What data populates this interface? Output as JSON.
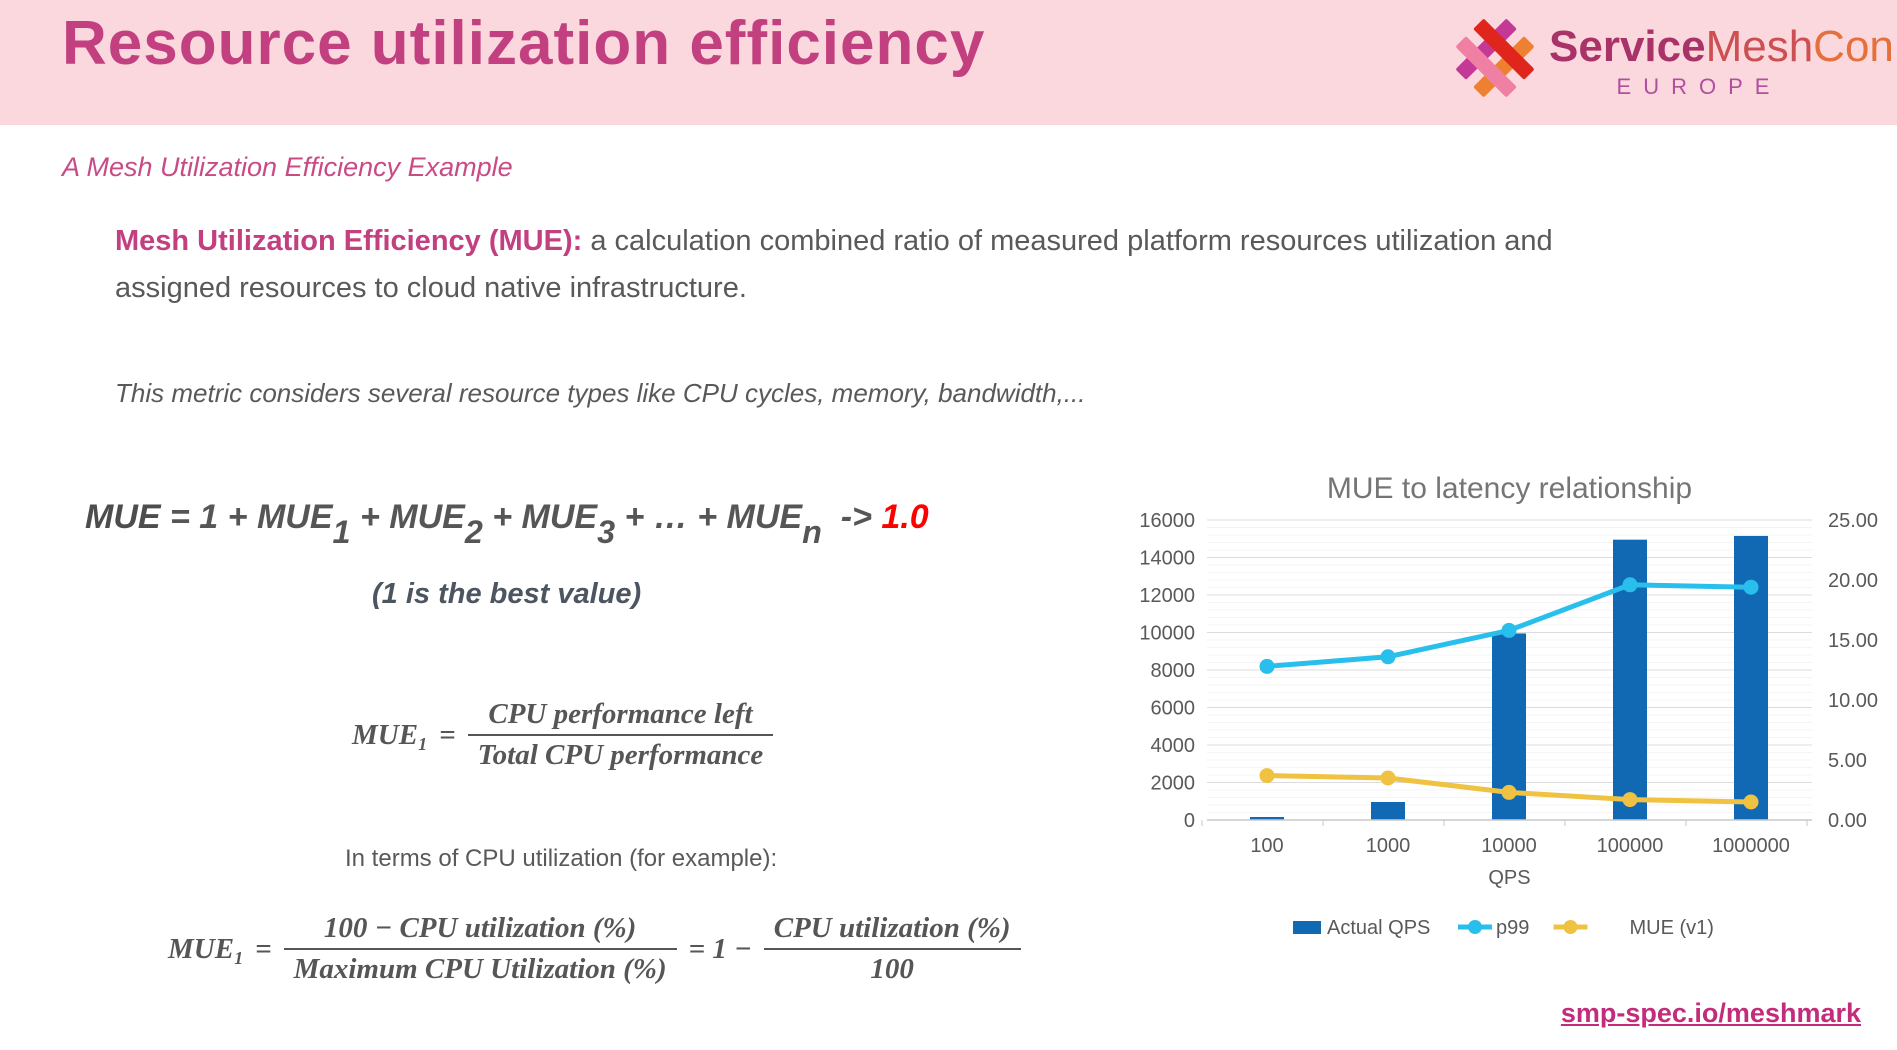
{
  "header": {
    "title": "Resource utilization efficiency",
    "logo": {
      "word_service": "Service",
      "word_mesh": "Mesh",
      "word_con": "Con",
      "region": "EUROPE"
    }
  },
  "subtitle": "A Mesh Utilization Efficiency Example",
  "definition": {
    "lead": "Mesh Utilization Efficiency (MUE):",
    "rest": " a calculation combined ratio of measured platform resources utilization and assigned resources to cloud native infrastructure."
  },
  "note": "This metric considers several resource types like CPU cycles, memory, bandwidth,...",
  "formulas": {
    "sum": {
      "parts": [
        {
          "text": "MUE",
          "cls": "f-bold"
        },
        {
          "text": " = 1 + MUE",
          "cls": ""
        },
        {
          "text": "1",
          "cls": "f-sub"
        },
        {
          "text": " + MUE",
          "cls": ""
        },
        {
          "text": "2",
          "cls": "f-sub"
        },
        {
          "text": " + MUE",
          "cls": ""
        },
        {
          "text": "3",
          "cls": "f-sub"
        },
        {
          "text": " + … + MUE",
          "cls": ""
        },
        {
          "text": "n",
          "cls": "f-sub"
        },
        {
          "text": "  -> ",
          "cls": "f-arrow"
        },
        {
          "text": "1.0",
          "cls": "f-red"
        }
      ],
      "caption": "(1 is the best value)"
    },
    "mue1": {
      "lhs": "MUE",
      "sub": "1",
      "eq": "=",
      "num": "CPU performance left",
      "den": "Total CPU performance"
    },
    "terms_note": "In terms of CPU utilization (for example):",
    "mue1_cpu": {
      "lhs": "MUE",
      "sub": "1",
      "eq": "=",
      "fracA": {
        "num": "100 − CPU utilization (%)",
        "den": "Maximum CPU Utilization (%)"
      },
      "mid": "= 1 −",
      "fracB": {
        "num": "CPU utilization (%)",
        "den": "100"
      }
    }
  },
  "chart_data": {
    "type": "combo",
    "title": "MUE to latency relationship",
    "xlabel": "QPS",
    "categories": [
      "100",
      "1000",
      "10000",
      "100000",
      "1000000"
    ],
    "left_axis": {
      "min": 0,
      "max": 16000,
      "step": 2000
    },
    "right_axis": {
      "min": 0,
      "max": 25,
      "step": 5,
      "decimals": 2
    },
    "grid": {
      "major": true,
      "minor_step_left_units": 400
    },
    "legend_position": "bottom",
    "series": [
      {
        "name": "Actual QPS",
        "type": "bar",
        "axis": "left",
        "color": "#1169B4",
        "values": [
          100,
          960,
          9950,
          14950,
          15150
        ]
      },
      {
        "name": "p99",
        "type": "line",
        "axis": "right",
        "color": "#29BFEC",
        "values": [
          12.8,
          13.6,
          15.8,
          19.6,
          19.4
        ]
      },
      {
        "name": "MUE (v1)",
        "type": "line",
        "axis": "right",
        "color": "#EFC242",
        "values": [
          3.7,
          3.5,
          2.3,
          1.7,
          1.5
        ]
      }
    ]
  },
  "footer_link": "smp-spec.io/meshmark",
  "colors": {
    "header_bg": "#FBD8DD",
    "title_pink": "#C23F80",
    "subtitle_pink": "#C94B86",
    "body_gray": "#595959",
    "formula_red": "#FF0000",
    "bar_blue": "#1169B4",
    "line_cyan": "#29BFEC",
    "line_yellow": "#EFC242",
    "link_pink": "#C22C7B",
    "chart_title_gray": "#757575",
    "grid_major": "#DCDCDC",
    "grid_minor": "#F4F4F4"
  }
}
